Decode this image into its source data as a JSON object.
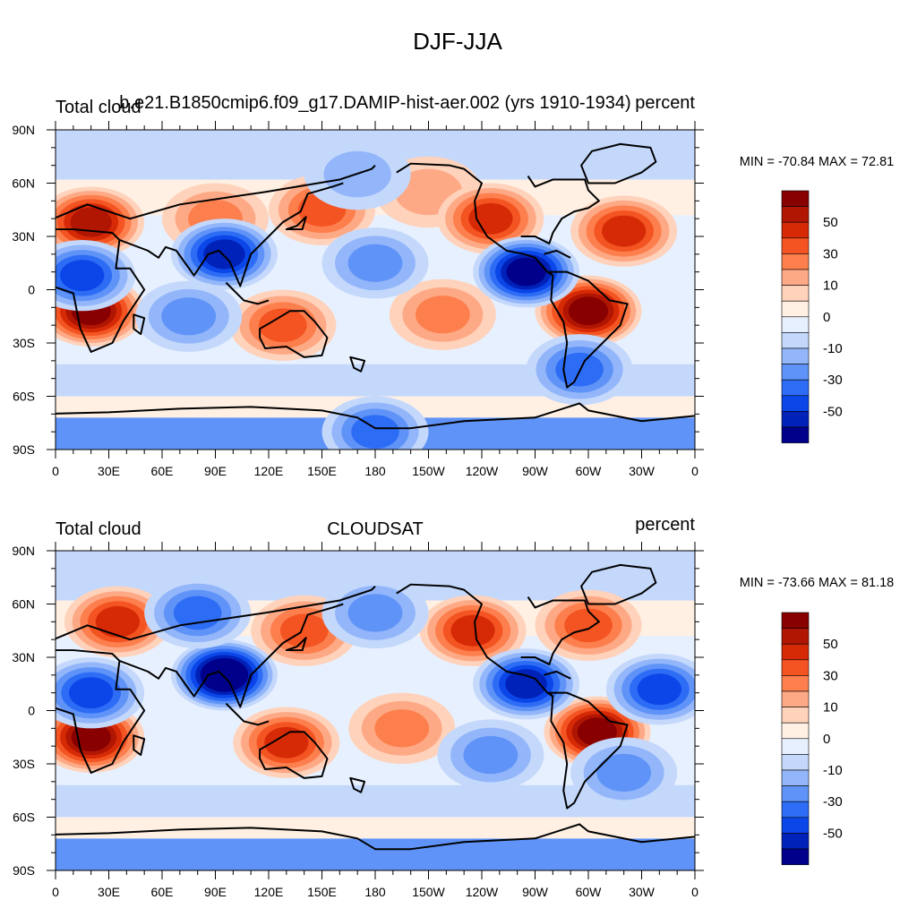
{
  "figure": {
    "title": "DJF-JJA"
  },
  "palette": [
    "#00008b",
    "#0022b8",
    "#0a46e8",
    "#2d6cf5",
    "#5f93f7",
    "#93b6fa",
    "#c4d8fc",
    "#e7f0fe",
    "#fff0e3",
    "#ffd2bb",
    "#fea985",
    "#fc7f4d",
    "#f35422",
    "#d62a06",
    "#b01602",
    "#880000"
  ],
  "colorbar_labels": [
    "50",
    "30",
    "10",
    "0",
    "-10",
    "-30",
    "-50"
  ],
  "chart_data": [
    {
      "type": "heatmap",
      "title_left": "Total cloud",
      "title_center": "b.e21.B1850cmip6.f09_g17.DAMIP-hist-aer.002 (yrs 1910-1934)",
      "title_right": "percent",
      "stats": "MIN = -70.84 MAX =  72.81",
      "variable": "Total cloud fraction difference (DJF minus JJA)",
      "units": "percent",
      "min": -70.84,
      "max": 72.81,
      "xlim": [
        0,
        360
      ],
      "ylim": [
        -90,
        90
      ],
      "xticks": [
        "0",
        "30E",
        "60E",
        "90E",
        "120E",
        "150E",
        "180",
        "150W",
        "120W",
        "90W",
        "60W",
        "30W",
        "0"
      ],
      "yticks": [
        "90N",
        "60N",
        "30N",
        "0",
        "30S",
        "60S",
        "90S"
      ],
      "contour_levels": [
        -70,
        -60,
        -50,
        -40,
        -30,
        -20,
        -10,
        -5,
        0,
        5,
        10,
        20,
        30,
        40,
        50,
        60,
        70
      ],
      "features": [
        {
          "lon": 20,
          "lat": 38,
          "value": 58
        },
        {
          "lon": 90,
          "lat": 40,
          "value": 20
        },
        {
          "lon": 150,
          "lat": 45,
          "value": 35
        },
        {
          "lon": 210,
          "lat": 55,
          "value": 18
        },
        {
          "lon": 245,
          "lat": 40,
          "value": 40
        },
        {
          "lon": 320,
          "lat": 33,
          "value": 45
        },
        {
          "lon": 20,
          "lat": -12,
          "value": 62
        },
        {
          "lon": 128,
          "lat": -20,
          "value": 35
        },
        {
          "lon": 218,
          "lat": -14,
          "value": 22
        },
        {
          "lon": 300,
          "lat": -12,
          "value": 66
        },
        {
          "lon": 95,
          "lat": 20,
          "value": -55
        },
        {
          "lon": 15,
          "lat": 8,
          "value": -42
        },
        {
          "lon": 265,
          "lat": 10,
          "value": -65
        },
        {
          "lon": 180,
          "lat": 15,
          "value": -22
        },
        {
          "lon": 170,
          "lat": 65,
          "value": -15
        },
        {
          "lon": 75,
          "lat": -15,
          "value": -25
        },
        {
          "lon": 295,
          "lat": -45,
          "value": -38
        },
        {
          "lon": 180,
          "lat": -80,
          "value": -35
        }
      ]
    },
    {
      "type": "heatmap",
      "title_left": "Total cloud",
      "title_center": "CLOUDSAT",
      "title_right": "percent",
      "stats": "MIN = -73.66 MAX =  81.18",
      "variable": "Total cloud fraction difference (DJF minus JJA)",
      "units": "percent",
      "min": -73.66,
      "max": 81.18,
      "xlim": [
        0,
        360
      ],
      "ylim": [
        -90,
        90
      ],
      "xticks": [
        "0",
        "30E",
        "60E",
        "90E",
        "120E",
        "150E",
        "180",
        "150W",
        "120W",
        "90W",
        "60W",
        "30W",
        "0"
      ],
      "yticks": [
        "90N",
        "60N",
        "30N",
        "0",
        "30S",
        "60S",
        "90S"
      ],
      "contour_levels": [
        -70,
        -60,
        -50,
        -40,
        -30,
        -20,
        -10,
        -5,
        0,
        5,
        10,
        20,
        30,
        40,
        50,
        60,
        70
      ],
      "features": [
        {
          "lon": 35,
          "lat": 50,
          "value": 45
        },
        {
          "lon": 140,
          "lat": 45,
          "value": 35
        },
        {
          "lon": 235,
          "lat": 45,
          "value": 40
        },
        {
          "lon": 300,
          "lat": 48,
          "value": 30
        },
        {
          "lon": 20,
          "lat": -15,
          "value": 66
        },
        {
          "lon": 130,
          "lat": -18,
          "value": 45
        },
        {
          "lon": 195,
          "lat": -10,
          "value": 22
        },
        {
          "lon": 305,
          "lat": -12,
          "value": 62
        },
        {
          "lon": 95,
          "lat": 20,
          "value": -70
        },
        {
          "lon": 20,
          "lat": 10,
          "value": -42
        },
        {
          "lon": 265,
          "lat": 15,
          "value": -55
        },
        {
          "lon": 340,
          "lat": 12,
          "value": -42
        },
        {
          "lon": 80,
          "lat": 55,
          "value": -35
        },
        {
          "lon": 180,
          "lat": 55,
          "value": -20
        },
        {
          "lon": 245,
          "lat": -25,
          "value": -28
        },
        {
          "lon": 320,
          "lat": -35,
          "value": -25
        }
      ]
    }
  ]
}
